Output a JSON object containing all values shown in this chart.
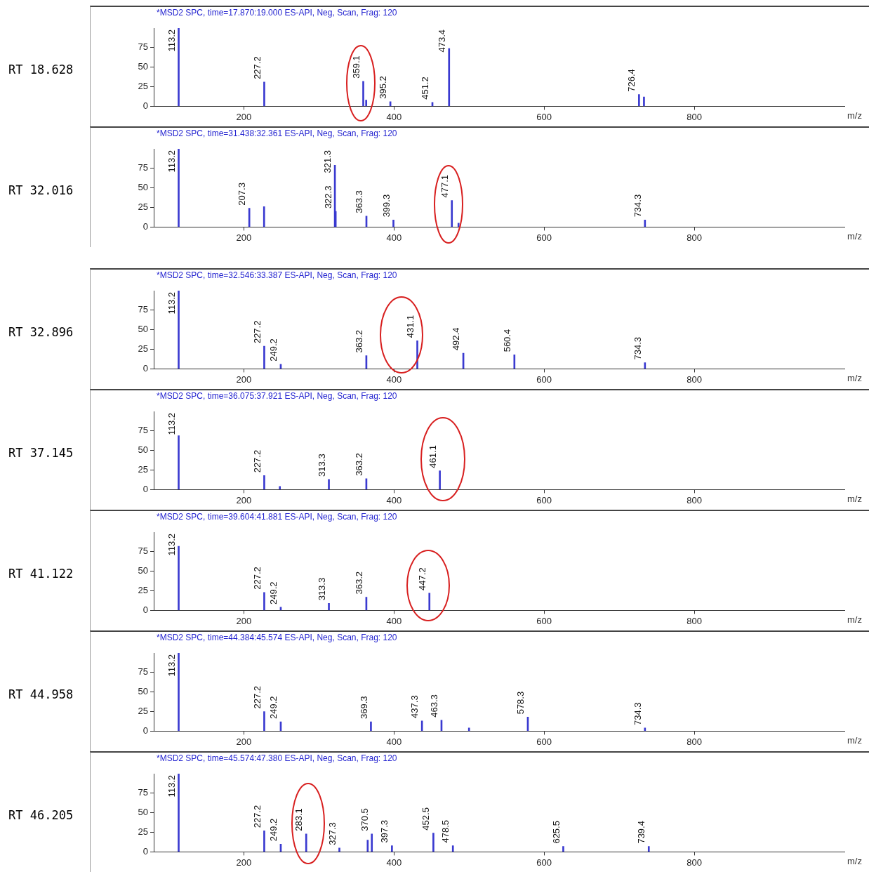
{
  "chart_data": [
    {
      "type": "bar",
      "title": "*MSD2 SPC, time=17.870:19.000   ES-API, Neg, Scan, Frag: 120",
      "ylabel": "RT 18.628",
      "xlabel": "m/z",
      "color": "#3a3ad0",
      "xlim": [
        80,
        1000
      ],
      "xticks": [
        200,
        400,
        600,
        800
      ],
      "ylim": [
        0,
        100
      ],
      "yticks": [
        0,
        25,
        50,
        75
      ],
      "x": [
        113.2,
        227.2,
        359.1,
        363,
        395.2,
        451.2,
        473.4,
        726.4,
        733
      ],
      "values": [
        100,
        31,
        32,
        8,
        6,
        5,
        74,
        15,
        12
      ],
      "annotations": [
        {
          "text": "113.2",
          "x": 113.2,
          "y": 100
        },
        {
          "text": "227.2",
          "x": 227.2,
          "y": 31
        },
        {
          "text": "359.1",
          "x": 359.1,
          "y": 32
        },
        {
          "text": "395.2",
          "x": 395.2,
          "y": 6
        },
        {
          "text": "451.2",
          "x": 451.2,
          "y": 5
        },
        {
          "text": "473.4",
          "x": 473.4,
          "y": 74
        },
        {
          "text": "726.4",
          "x": 726.4,
          "y": 15
        }
      ]
    },
    {
      "type": "bar",
      "title": "*MSD2 SPC, time=31.438:32.361   ES-API, Neg, Scan, Frag: 120",
      "ylabel": "RT 32.016",
      "xlabel": "m/z",
      "color": "#3a3ad0",
      "xlim": [
        80,
        1000
      ],
      "xticks": [
        200,
        400,
        600,
        800
      ],
      "ylim": [
        0,
        100
      ],
      "yticks": [
        0,
        25,
        50,
        75
      ],
      "x": [
        113.2,
        207.3,
        227,
        321.3,
        322.3,
        363.3,
        399.3,
        477.1,
        486,
        734.3
      ],
      "values": [
        100,
        24,
        26,
        79,
        20,
        14,
        9,
        34,
        5,
        9
      ],
      "annotations": [
        {
          "text": "113.2",
          "x": 113.2,
          "y": 100
        },
        {
          "text": "207.3",
          "x": 207.3,
          "y": 24
        },
        {
          "text": "322.3",
          "x": 322.3,
          "y": 20
        },
        {
          "text": "321.3",
          "x": 321.3,
          "y": 79
        },
        {
          "text": "363.3",
          "x": 363.3,
          "y": 14
        },
        {
          "text": "399.3",
          "x": 399.3,
          "y": 9
        },
        {
          "text": "477.1",
          "x": 477.1,
          "y": 34
        },
        {
          "text": "734.3",
          "x": 734.3,
          "y": 9
        }
      ]
    },
    {
      "type": "bar",
      "title": "*MSD2 SPC, time=32.546:33.387   ES-API, Neg, Scan, Frag: 120",
      "ylabel": "RT 32.896",
      "xlabel": "m/z",
      "color": "#3a3ad0",
      "xlim": [
        80,
        1000
      ],
      "xticks": [
        200,
        400,
        600,
        800
      ],
      "ylim": [
        0,
        100
      ],
      "yticks": [
        0,
        25,
        50,
        75
      ],
      "x": [
        113.2,
        227.2,
        249.2,
        363.2,
        431.1,
        492.4,
        560.4,
        734.3
      ],
      "values": [
        100,
        29,
        6,
        17,
        36,
        20,
        18,
        8
      ],
      "annotations": [
        {
          "text": "113.2",
          "x": 113.2,
          "y": 100
        },
        {
          "text": "227.2",
          "x": 227.2,
          "y": 29
        },
        {
          "text": "249.2",
          "x": 249.2,
          "y": 6
        },
        {
          "text": "363.2",
          "x": 363.2,
          "y": 17
        },
        {
          "text": "431.1",
          "x": 431.1,
          "y": 36
        },
        {
          "text": "492.4",
          "x": 492.4,
          "y": 20
        },
        {
          "text": "560.4",
          "x": 560.4,
          "y": 18
        },
        {
          "text": "734.3",
          "x": 734.3,
          "y": 8
        }
      ]
    },
    {
      "type": "bar",
      "title": "*MSD2 SPC, time=36.075:37.921   ES-API, Neg, Scan, Frag: 120",
      "ylabel": "RT 37.145",
      "xlabel": "m/z",
      "color": "#3a3ad0",
      "xlim": [
        80,
        1000
      ],
      "xticks": [
        200,
        400,
        600,
        800
      ],
      "ylim": [
        0,
        100
      ],
      "yticks": [
        0,
        25,
        50,
        75
      ],
      "x": [
        113.2,
        227.2,
        248,
        313.3,
        363.2,
        461.1
      ],
      "values": [
        69,
        18,
        4,
        13,
        14,
        24
      ],
      "annotations": [
        {
          "text": "113.2",
          "x": 113.2,
          "y": 69
        },
        {
          "text": "227.2",
          "x": 227.2,
          "y": 18
        },
        {
          "text": "313.3",
          "x": 313.3,
          "y": 13
        },
        {
          "text": "363.2",
          "x": 363.2,
          "y": 14
        },
        {
          "text": "461.1",
          "x": 461.1,
          "y": 24
        }
      ]
    },
    {
      "type": "bar",
      "title": "*MSD2 SPC, time=39.604:41.881   ES-API, Neg, Scan, Frag: 120",
      "ylabel": "RT 41.122",
      "xlabel": "m/z",
      "color": "#3a3ad0",
      "xlim": [
        80,
        1000
      ],
      "xticks": [
        200,
        400,
        600,
        800
      ],
      "ylim": [
        0,
        100
      ],
      "yticks": [
        0,
        25,
        50,
        75
      ],
      "x": [
        113.2,
        227.2,
        249.2,
        313.3,
        363.2,
        447.2
      ],
      "values": [
        82,
        23,
        4,
        9,
        17,
        22
      ],
      "annotations": [
        {
          "text": "113.2",
          "x": 113.2,
          "y": 82
        },
        {
          "text": "227.2",
          "x": 227.2,
          "y": 23
        },
        {
          "text": "249.2",
          "x": 249.2,
          "y": 4
        },
        {
          "text": "313.3",
          "x": 313.3,
          "y": 9
        },
        {
          "text": "363.2",
          "x": 363.2,
          "y": 17
        },
        {
          "text": "447.2",
          "x": 447.2,
          "y": 22
        }
      ]
    },
    {
      "type": "bar",
      "title": "*MSD2 SPC, time=44.384:45.574   ES-API, Neg, Scan, Frag: 120",
      "ylabel": "RT 44.958",
      "xlabel": "m/z",
      "color": "#3a3ad0",
      "xlim": [
        80,
        1000
      ],
      "xticks": [
        200,
        400,
        600,
        800
      ],
      "ylim": [
        0,
        100
      ],
      "yticks": [
        0,
        25,
        50,
        75
      ],
      "x": [
        113.2,
        227.2,
        249.2,
        369.3,
        437.3,
        463.3,
        500,
        578.3,
        734.3
      ],
      "values": [
        100,
        25,
        12,
        12,
        13,
        14,
        4,
        18,
        4
      ],
      "annotations": [
        {
          "text": "113.2",
          "x": 113.2,
          "y": 100
        },
        {
          "text": "227.2",
          "x": 227.2,
          "y": 25
        },
        {
          "text": "249.2",
          "x": 249.2,
          "y": 12
        },
        {
          "text": "369.3",
          "x": 369.3,
          "y": 12
        },
        {
          "text": "437.3",
          "x": 437.3,
          "y": 13
        },
        {
          "text": "463.3",
          "x": 463.3,
          "y": 14
        },
        {
          "text": "578.3",
          "x": 578.3,
          "y": 18
        },
        {
          "text": "734.3",
          "x": 734.3,
          "y": 4
        }
      ]
    },
    {
      "type": "bar",
      "title": "*MSD2 SPC, time=45.574:47.380   ES-API, Neg, Scan, Frag: 120",
      "ylabel": "RT 46.205",
      "xlabel": "m/z",
      "color": "#3a3ad0",
      "xlim": [
        80,
        1000
      ],
      "xticks": [
        200,
        400,
        600,
        800
      ],
      "ylim": [
        0,
        100
      ],
      "yticks": [
        0,
        25,
        50,
        75
      ],
      "x": [
        113.2,
        227.2,
        249.2,
        283.1,
        327.3,
        365,
        370.5,
        397.3,
        452.5,
        478.5,
        625.5,
        739.4
      ],
      "values": [
        100,
        27,
        10,
        23,
        5,
        15,
        23,
        8,
        24,
        8,
        7,
        7
      ],
      "annotations": [
        {
          "text": "113.2",
          "x": 113.2,
          "y": 100
        },
        {
          "text": "227.2",
          "x": 227.2,
          "y": 27
        },
        {
          "text": "249.2",
          "x": 249.2,
          "y": 10
        },
        {
          "text": "283.1",
          "x": 283.1,
          "y": 23
        },
        {
          "text": "327.3",
          "x": 327.3,
          "y": 5
        },
        {
          "text": "370.5",
          "x": 370.5,
          "y": 23
        },
        {
          "text": "397.3",
          "x": 397.3,
          "y": 8
        },
        {
          "text": "452.5",
          "x": 452.5,
          "y": 24
        },
        {
          "text": "478.5",
          "x": 478.5,
          "y": 8
        },
        {
          "text": "625.5",
          "x": 625.5,
          "y": 7
        },
        {
          "text": "739.4",
          "x": 739.4,
          "y": 7
        }
      ]
    }
  ]
}
